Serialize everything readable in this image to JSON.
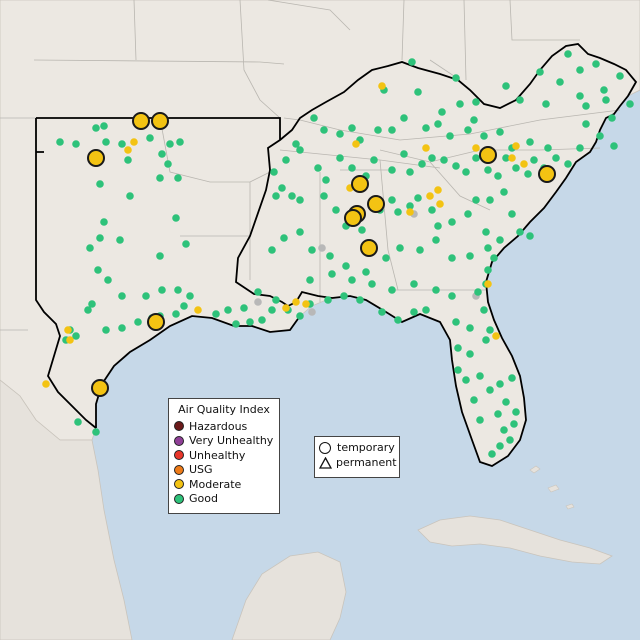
{
  "map": {
    "colors": {
      "water": "#c6d8e8",
      "land": "#ece8e2",
      "boundary": "#b9b6b0",
      "region_outline": "#000000",
      "hazardous": "#6b1a1a",
      "very_unhealthy": "#8f3f97",
      "unhealthy": "#e8362a",
      "usg": "#ee7b18",
      "moderate": "#f3c313",
      "good": "#2ec27a",
      "no_data": "#b8b8b8",
      "large_marker_stroke": "#1a1a1a"
    }
  },
  "legend_aqi": {
    "title": "Air Quality Index",
    "items": [
      {
        "label": "Hazardous",
        "color": "#6b1a1a"
      },
      {
        "label": "Very Unhealthy",
        "color": "#8f3f97"
      },
      {
        "label": "Unhealthy",
        "color": "#e8362a"
      },
      {
        "label": "USG",
        "color": "#ee7b18"
      },
      {
        "label": "Moderate",
        "color": "#f3c313"
      },
      {
        "label": "Good",
        "color": "#2ec27a"
      }
    ]
  },
  "legend_type": {
    "items": [
      {
        "label": "temporary",
        "shape": "circle-icon"
      },
      {
        "label": "permanent",
        "shape": "triangle-icon"
      }
    ]
  }
}
